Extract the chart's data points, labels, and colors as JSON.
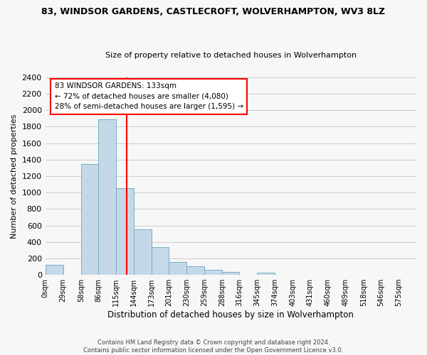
{
  "title": "83, WINDSOR GARDENS, CASTLECROFT, WOLVERHAMPTON, WV3 8LZ",
  "subtitle": "Size of property relative to detached houses in Wolverhampton",
  "xlabel": "Distribution of detached houses by size in Wolverhampton",
  "ylabel": "Number of detached properties",
  "bin_labels": [
    "0sqm",
    "29sqm",
    "58sqm",
    "86sqm",
    "115sqm",
    "144sqm",
    "173sqm",
    "201sqm",
    "230sqm",
    "259sqm",
    "288sqm",
    "316sqm",
    "345sqm",
    "374sqm",
    "403sqm",
    "431sqm",
    "460sqm",
    "489sqm",
    "518sqm",
    "546sqm",
    "575sqm"
  ],
  "bin_edges": [
    0,
    29,
    58,
    86,
    115,
    144,
    173,
    201,
    230,
    259,
    288,
    316,
    345,
    374,
    403,
    431,
    460,
    489,
    518,
    546,
    575,
    604
  ],
  "bar_heights": [
    125,
    0,
    1350,
    1890,
    1050,
    550,
    340,
    160,
    105,
    60,
    35,
    0,
    25,
    0,
    0,
    0,
    0,
    0,
    0,
    0,
    0
  ],
  "bar_color": "#c5d8e8",
  "bar_edge_color": "#7aaec4",
  "vline_x": 133,
  "vline_color": "red",
  "annotation_text": "83 WINDSOR GARDENS: 133sqm\n← 72% of detached houses are smaller (4,080)\n28% of semi-detached houses are larger (1,595) →",
  "annotation_box_color": "white",
  "annotation_box_edge_color": "red",
  "ylim": [
    0,
    2400
  ],
  "yticks": [
    0,
    200,
    400,
    600,
    800,
    1000,
    1200,
    1400,
    1600,
    1800,
    2000,
    2200,
    2400
  ],
  "grid_color": "#cccccc",
  "background_color": "#f7f7f7",
  "footer_line1": "Contains HM Land Registry data © Crown copyright and database right 2024.",
  "footer_line2": "Contains public sector information licensed under the Open Government Licence v3.0."
}
